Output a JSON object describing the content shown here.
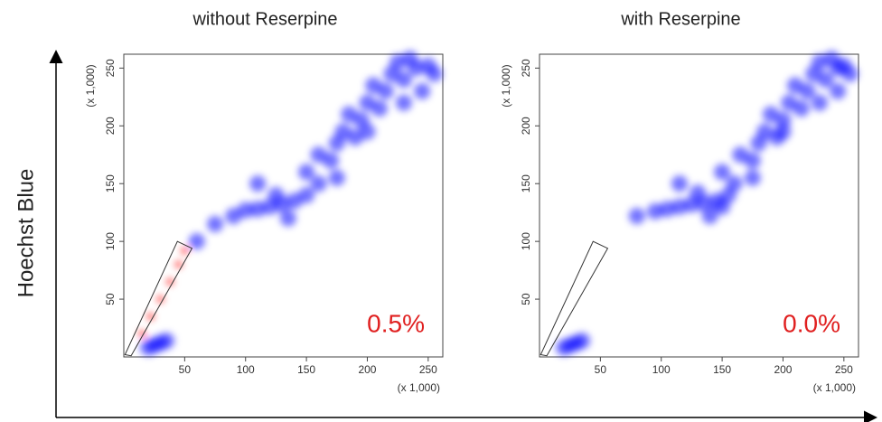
{
  "y_label": "Hoechst Blue",
  "chart_data": [
    {
      "type": "scatter",
      "title": "without Reserpine",
      "annotation": "0.5%",
      "x_unit_label": "(x 1,000)",
      "y_unit_label": "(x 1,000)",
      "xlim": [
        0,
        262
      ],
      "ylim": [
        0,
        262
      ],
      "xticks": [
        50,
        100,
        150,
        200,
        250
      ],
      "yticks": [
        50,
        100,
        150,
        200,
        250
      ],
      "series": [
        {
          "color": "#0000ff",
          "x": [
            20,
            25,
            30,
            35,
            60,
            75,
            90,
            100,
            110,
            120,
            130,
            140,
            125,
            150,
            135,
            150,
            160,
            160,
            170,
            175,
            180,
            190,
            185,
            195,
            200,
            210,
            205,
            215,
            220,
            230,
            225,
            240,
            235,
            250,
            255,
            245,
            175,
            200,
            230,
            110
          ],
          "y": [
            8,
            10,
            12,
            14,
            100,
            115,
            122,
            127,
            128,
            130,
            132,
            135,
            140,
            140,
            120,
            160,
            150,
            175,
            170,
            185,
            195,
            190,
            210,
            205,
            220,
            215,
            235,
            230,
            245,
            240,
            255,
            250,
            258,
            252,
            245,
            230,
            155,
            195,
            220,
            150
          ]
        },
        {
          "color": "#ff0000",
          "x": [
            15,
            22,
            30,
            38,
            45,
            50
          ],
          "y": [
            20,
            35,
            50,
            65,
            80,
            92
          ]
        }
      ],
      "gate": {
        "x": [
          1,
          44,
          56,
          6
        ],
        "y": [
          2,
          100,
          94,
          1
        ]
      }
    },
    {
      "type": "scatter",
      "title": "with Reserpine",
      "annotation": "0.0%",
      "x_unit_label": "(x 1,000)",
      "y_unit_label": "(x 1,000)",
      "xlim": [
        0,
        262
      ],
      "ylim": [
        0,
        262
      ],
      "xticks": [
        50,
        100,
        150,
        200,
        250
      ],
      "yticks": [
        50,
        100,
        150,
        200,
        250
      ],
      "series": [
        {
          "color": "#0000ff",
          "x": [
            20,
            25,
            30,
            35,
            80,
            95,
            105,
            115,
            125,
            135,
            145,
            130,
            155,
            140,
            150,
            160,
            165,
            175,
            180,
            185,
            195,
            190,
            200,
            205,
            215,
            210,
            220,
            225,
            235,
            230,
            245,
            240,
            250,
            255,
            245,
            175,
            200,
            230,
            115,
            150
          ],
          "y": [
            8,
            10,
            12,
            14,
            122,
            126,
            128,
            130,
            132,
            133,
            135,
            142,
            140,
            122,
            160,
            150,
            175,
            170,
            185,
            195,
            190,
            210,
            205,
            220,
            215,
            235,
            230,
            245,
            240,
            255,
            250,
            258,
            252,
            245,
            230,
            155,
            195,
            220,
            150,
            130
          ]
        }
      ],
      "gate": {
        "x": [
          1,
          44,
          56,
          6
        ],
        "y": [
          2,
          100,
          94,
          1
        ]
      }
    }
  ]
}
